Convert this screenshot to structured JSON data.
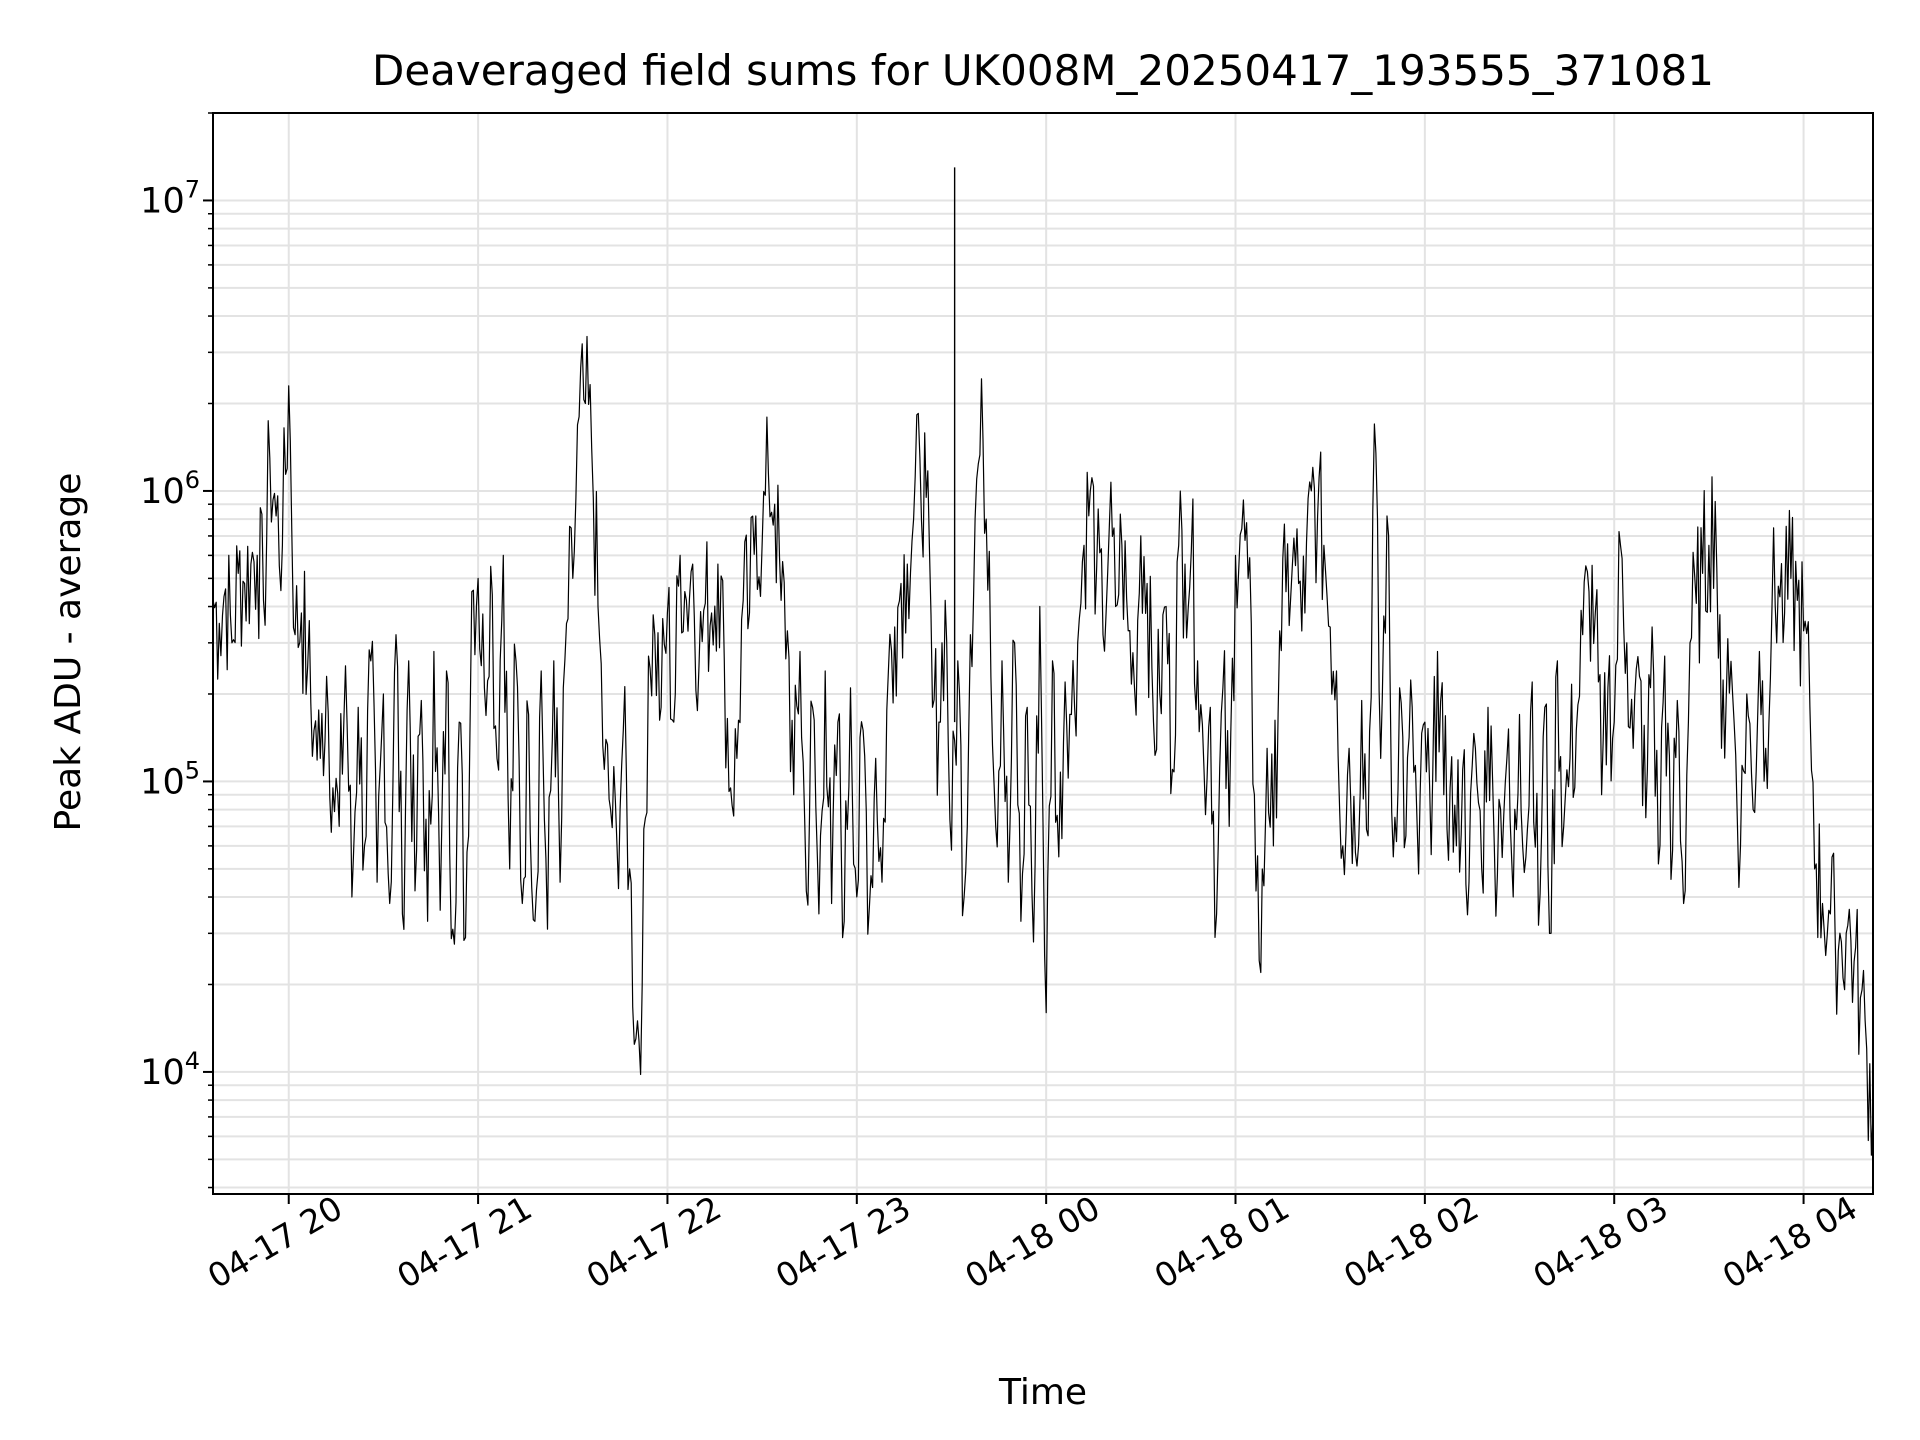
{
  "chart_data": {
    "type": "line",
    "title": "Deaveraged field sums for UK008M_20250417_193555_371081",
    "xlabel": "Time",
    "ylabel": "Peak ADU - average",
    "yscale": "log",
    "ylim": [
      3800,
      20000000
    ],
    "xlim": [
      "2025-04-17 19:36",
      "2025-04-18 04:22"
    ],
    "grid": true,
    "line_color": "#000000",
    "x_ticks": [
      {
        "label": "04-17 20",
        "x": "2025-04-17 20:00"
      },
      {
        "label": "04-17 21",
        "x": "2025-04-17 21:00"
      },
      {
        "label": "04-17 22",
        "x": "2025-04-17 22:00"
      },
      {
        "label": "04-17 23",
        "x": "2025-04-17 23:00"
      },
      {
        "label": "04-18 00",
        "x": "2025-04-18 00:00"
      },
      {
        "label": "04-18 01",
        "x": "2025-04-18 01:00"
      },
      {
        "label": "04-18 02",
        "x": "2025-04-18 02:00"
      },
      {
        "label": "04-18 03",
        "x": "2025-04-18 03:00"
      },
      {
        "label": "04-18 04",
        "x": "2025-04-18 04:00"
      }
    ],
    "y_ticks": [
      {
        "base": "10",
        "exp": "4",
        "value": 10000
      },
      {
        "base": "10",
        "exp": "5",
        "value": 100000
      },
      {
        "base": "10",
        "exp": "6",
        "value": 1000000
      },
      {
        "base": "10",
        "exp": "7",
        "value": 10000000
      }
    ],
    "series": [
      {
        "x": [
          "2025-04-17 19:36",
          "2025-04-17 19:38",
          "2025-04-17 19:40",
          "2025-04-17 19:42",
          "2025-04-17 19:44",
          "2025-04-17 19:46",
          "2025-04-17 19:48",
          "2025-04-17 19:50",
          "2025-04-17 19:52",
          "2025-04-17 19:54",
          "2025-04-17 19:56",
          "2025-04-17 19:58",
          "2025-04-17 20:00",
          "2025-04-17 20:02",
          "2025-04-17 20:04",
          "2025-04-17 20:06",
          "2025-04-17 20:08",
          "2025-04-17 20:10",
          "2025-04-17 20:12",
          "2025-04-17 20:14",
          "2025-04-17 20:16",
          "2025-04-17 20:18",
          "2025-04-17 20:20",
          "2025-04-17 20:22",
          "2025-04-17 20:24",
          "2025-04-17 20:26",
          "2025-04-17 20:28",
          "2025-04-17 20:30",
          "2025-04-17 20:32",
          "2025-04-17 20:34",
          "2025-04-17 20:36",
          "2025-04-17 20:38",
          "2025-04-17 20:40",
          "2025-04-17 20:42",
          "2025-04-17 20:44",
          "2025-04-17 20:46",
          "2025-04-17 20:48",
          "2025-04-17 20:50",
          "2025-04-17 20:52",
          "2025-04-17 20:54",
          "2025-04-17 20:56",
          "2025-04-17 20:58",
          "2025-04-17 21:00",
          "2025-04-17 21:02",
          "2025-04-17 21:04",
          "2025-04-17 21:06",
          "2025-04-17 21:08",
          "2025-04-17 21:10",
          "2025-04-17 21:12",
          "2025-04-17 21:14",
          "2025-04-17 21:16",
          "2025-04-17 21:18",
          "2025-04-17 21:20",
          "2025-04-17 21:22",
          "2025-04-17 21:24",
          "2025-04-17 21:26",
          "2025-04-17 21:28",
          "2025-04-17 21:30",
          "2025-04-17 21:32",
          "2025-04-17 21:34",
          "2025-04-17 21:36",
          "2025-04-17 21:38",
          "2025-04-17 21:40",
          "2025-04-17 21:42",
          "2025-04-17 21:44",
          "2025-04-17 21:46",
          "2025-04-17 21:48",
          "2025-04-17 21:50",
          "2025-04-17 21:52",
          "2025-04-17 21:54",
          "2025-04-17 21:56",
          "2025-04-17 21:58",
          "2025-04-17 22:00",
          "2025-04-17 22:02",
          "2025-04-17 22:04",
          "2025-04-17 22:06",
          "2025-04-17 22:08",
          "2025-04-17 22:10",
          "2025-04-17 22:12",
          "2025-04-17 22:14",
          "2025-04-17 22:16",
          "2025-04-17 22:18",
          "2025-04-17 22:20",
          "2025-04-17 22:22",
          "2025-04-17 22:24",
          "2025-04-17 22:26",
          "2025-04-17 22:28",
          "2025-04-17 22:30",
          "2025-04-17 22:32",
          "2025-04-17 22:34",
          "2025-04-17 22:36",
          "2025-04-17 22:38",
          "2025-04-17 22:40",
          "2025-04-17 22:42",
          "2025-04-17 22:44",
          "2025-04-17 22:46",
          "2025-04-17 22:48",
          "2025-04-17 22:50",
          "2025-04-17 22:52",
          "2025-04-17 22:54",
          "2025-04-17 22:56",
          "2025-04-17 22:58",
          "2025-04-17 23:00",
          "2025-04-17 23:02",
          "2025-04-17 23:04",
          "2025-04-17 23:06",
          "2025-04-17 23:08",
          "2025-04-17 23:10",
          "2025-04-17 23:12",
          "2025-04-17 23:14",
          "2025-04-17 23:16",
          "2025-04-17 23:18",
          "2025-04-17 23:20",
          "2025-04-17 23:22",
          "2025-04-17 23:24",
          "2025-04-17 23:26",
          "2025-04-17 23:28",
          "2025-04-17 23:30",
          "2025-04-17 23:32",
          "2025-04-17 23:34",
          "2025-04-17 23:36",
          "2025-04-17 23:38",
          "2025-04-17 23:40",
          "2025-04-17 23:42",
          "2025-04-17 23:44",
          "2025-04-17 23:46",
          "2025-04-17 23:48",
          "2025-04-17 23:50",
          "2025-04-17 23:52",
          "2025-04-17 23:54",
          "2025-04-17 23:56",
          "2025-04-17 23:58",
          "2025-04-18 00:00",
          "2025-04-18 00:02",
          "2025-04-18 00:04",
          "2025-04-18 00:06",
          "2025-04-18 00:08",
          "2025-04-18 00:10",
          "2025-04-18 00:12",
          "2025-04-18 00:14",
          "2025-04-18 00:16",
          "2025-04-18 00:18",
          "2025-04-18 00:20",
          "2025-04-18 00:22",
          "2025-04-18 00:24",
          "2025-04-18 00:26",
          "2025-04-18 00:28",
          "2025-04-18 00:30",
          "2025-04-18 00:32",
          "2025-04-18 00:34",
          "2025-04-18 00:36",
          "2025-04-18 00:38",
          "2025-04-18 00:40",
          "2025-04-18 00:42",
          "2025-04-18 00:44",
          "2025-04-18 00:46",
          "2025-04-18 00:48",
          "2025-04-18 00:50",
          "2025-04-18 00:52",
          "2025-04-18 00:54",
          "2025-04-18 00:56",
          "2025-04-18 00:58",
          "2025-04-18 01:00",
          "2025-04-18 01:02",
          "2025-04-18 01:04",
          "2025-04-18 01:06",
          "2025-04-18 01:08",
          "2025-04-18 01:10",
          "2025-04-18 01:12",
          "2025-04-18 01:14",
          "2025-04-18 01:16",
          "2025-04-18 01:18",
          "2025-04-18 01:20",
          "2025-04-18 01:22",
          "2025-04-18 01:24",
          "2025-04-18 01:26",
          "2025-04-18 01:28",
          "2025-04-18 01:30",
          "2025-04-18 01:32",
          "2025-04-18 01:34",
          "2025-04-18 01:36",
          "2025-04-18 01:38",
          "2025-04-18 01:40",
          "2025-04-18 01:42",
          "2025-04-18 01:44",
          "2025-04-18 01:46",
          "2025-04-18 01:48",
          "2025-04-18 01:50",
          "2025-04-18 01:52",
          "2025-04-18 01:54",
          "2025-04-18 01:56",
          "2025-04-18 01:58",
          "2025-04-18 02:00",
          "2025-04-18 02:02",
          "2025-04-18 02:04",
          "2025-04-18 02:06",
          "2025-04-18 02:08",
          "2025-04-18 02:10",
          "2025-04-18 02:12",
          "2025-04-18 02:14",
          "2025-04-18 02:16",
          "2025-04-18 02:18",
          "2025-04-18 02:20",
          "2025-04-18 02:22",
          "2025-04-18 02:24",
          "2025-04-18 02:26",
          "2025-04-18 02:28",
          "2025-04-18 02:30",
          "2025-04-18 02:32",
          "2025-04-18 02:34",
          "2025-04-18 02:36",
          "2025-04-18 02:38",
          "2025-04-18 02:40",
          "2025-04-18 02:42",
          "2025-04-18 02:44",
          "2025-04-18 02:46",
          "2025-04-18 02:48",
          "2025-04-18 02:50",
          "2025-04-18 02:52",
          "2025-04-18 02:54",
          "2025-04-18 02:56",
          "2025-04-18 02:58",
          "2025-04-18 03:00",
          "2025-04-18 03:02",
          "2025-04-18 03:04",
          "2025-04-18 03:06",
          "2025-04-18 03:08",
          "2025-04-18 03:10",
          "2025-04-18 03:12",
          "2025-04-18 03:14",
          "2025-04-18 03:16",
          "2025-04-18 03:18",
          "2025-04-18 03:20",
          "2025-04-18 03:22",
          "2025-04-18 03:24",
          "2025-04-18 03:26",
          "2025-04-18 03:28",
          "2025-04-18 03:30",
          "2025-04-18 03:32",
          "2025-04-18 03:34",
          "2025-04-18 03:36",
          "2025-04-18 03:38",
          "2025-04-18 03:40",
          "2025-04-18 03:42",
          "2025-04-18 03:44",
          "2025-04-18 03:46",
          "2025-04-18 03:48",
          "2025-04-18 03:50",
          "2025-04-18 03:52",
          "2025-04-18 03:54",
          "2025-04-18 03:56",
          "2025-04-18 03:58",
          "2025-04-18 04:00",
          "2025-04-18 04:02",
          "2025-04-18 04:04",
          "2025-04-18 04:06",
          "2025-04-18 04:08",
          "2025-04-18 04:10",
          "2025-04-18 04:12",
          "2025-04-18 04:14",
          "2025-04-18 04:16",
          "2025-04-18 04:18",
          "2025-04-18 04:20",
          "2025-04-18 04:22"
        ],
        "values": [
          420000,
          350000,
          460000,
          300000,
          520000,
          480000,
          560000,
          600000,
          420000,
          1300000,
          820000,
          650000,
          2300000,
          320000,
          380000,
          250000,
          150000,
          120000,
          230000,
          95000,
          70000,
          250000,
          40000,
          180000,
          60000,
          260000,
          45000,
          200000,
          38000,
          320000,
          35000,
          260000,
          42000,
          190000,
          33000,
          280000,
          36000,
          240000,
          31000,
          160000,
          29000,
          450000,
          500000,
          210000,
          550000,
          120000,
          600000,
          50000,
          260000,
          38000,
          170000,
          33000,
          240000,
          31000,
          260000,
          45000,
          350000,
          500000,
          1800000,
          2000000,
          1400000,
          400000,
          110000,
          80000,
          60000,
          150000,
          50000,
          13000,
          20000,
          270000,
          320000,
          180000,
          380000,
          160000,
          600000,
          420000,
          560000,
          250000,
          410000,
          380000,
          560000,
          260000,
          95000,
          120000,
          420000,
          380000,
          820000,
          650000,
          1150000,
          900000,
          420000,
          330000,
          90000,
          280000,
          42000,
          180000,
          35000,
          240000,
          38000,
          160000,
          33000,
          210000,
          40000,
          150000,
          37000,
          120000,
          45000,
          240000,
          340000,
          480000,
          560000,
          800000,
          1300000,
          950000,
          180000,
          160000,
          420000,
          58000,
          260000,
          40000,
          320000,
          1100000,
          1500000,
          620000,
          70000,
          260000,
          45000,
          300000,
          33000,
          180000,
          28000,
          400000,
          16000,
          260000,
          55000,
          220000,
          170000,
          300000,
          650000,
          1000000,
          550000,
          320000,
          750000,
          400000,
          650000,
          330000,
          210000,
          700000,
          480000,
          160000,
          200000,
          400000,
          110000,
          650000,
          560000,
          620000,
          260000,
          110000,
          180000,
          35000,
          210000,
          70000,
          600000,
          740000,
          500000,
          90000,
          22000,
          130000,
          60000,
          330000,
          450000,
          550000,
          480000,
          380000,
          1000000,
          820000,
          650000,
          340000,
          240000,
          60000,
          130000,
          57000,
          190000,
          65000,
          1700000,
          120000,
          820000,
          55000,
          210000,
          65000,
          180000,
          48000,
          160000,
          56000,
          280000,
          90000,
          95000,
          60000,
          110000,
          45000,
          130000,
          50000,
          180000,
          60000,
          80000,
          120000,
          40000,
          170000,
          55000,
          220000,
          32000,
          180000,
          30000,
          260000,
          70000,
          120000,
          150000,
          320000,
          450000,
          380000,
          90000,
          210000,
          160000,
          650000,
          300000,
          130000,
          230000,
          75000,
          340000,
          52000,
          270000,
          46000,
          190000,
          38000,
          300000,
          410000,
          520000,
          650000,
          920000,
          130000,
          310000,
          160000,
          60000,
          200000,
          80000,
          280000,
          130000,
          400000,
          470000,
          380000,
          500000,
          420000,
          330000,
          180000,
          52000,
          38000,
          36000,
          30000,
          28000,
          32000,
          24000,
          18000,
          12000,
          7200
        ]
      }
    ]
  }
}
